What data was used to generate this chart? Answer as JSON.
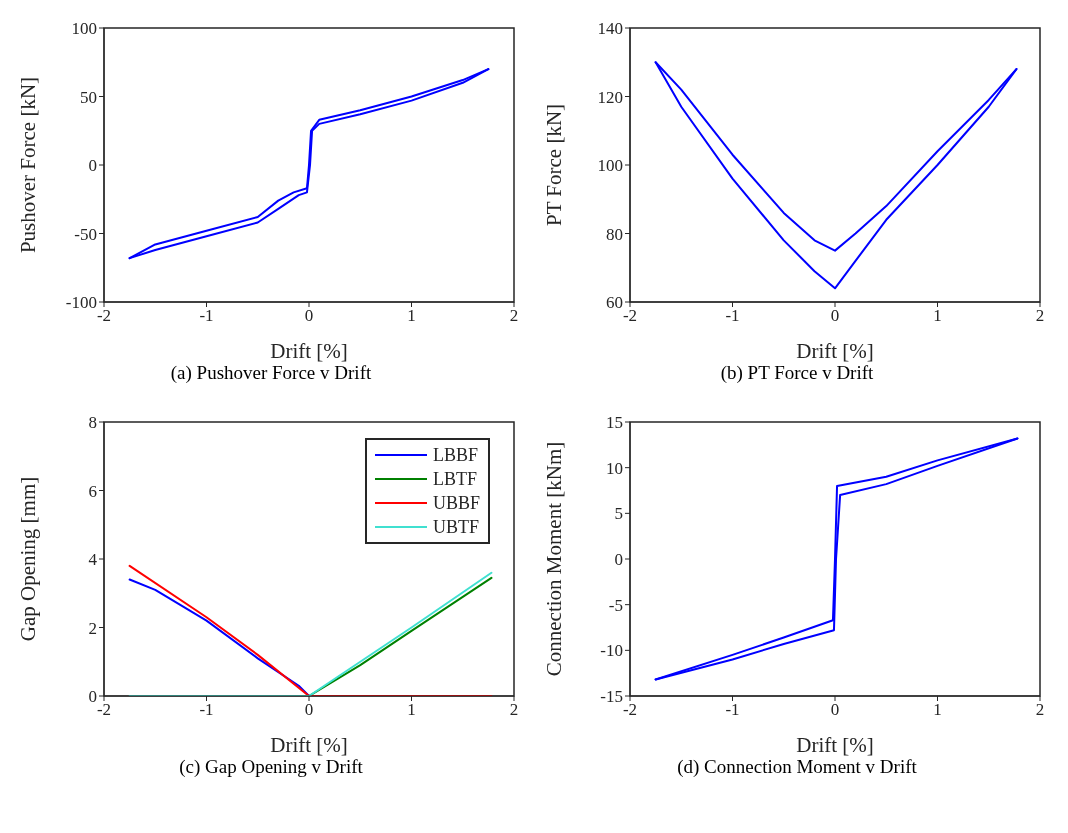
{
  "chart_data": [
    {
      "type": "line",
      "title": "(a) Pushover Force v Drift",
      "xlabel": "Drift [%]",
      "ylabel": "Pushover Force [kN]",
      "xlim": [
        -2,
        2
      ],
      "xticks": [
        -2,
        -1,
        0,
        1,
        2
      ],
      "ylim": [
        -100,
        100
      ],
      "yticks": [
        -100,
        -50,
        0,
        50,
        100
      ],
      "grid": false,
      "legend": false,
      "marker": "none",
      "line_style": "solid",
      "series": [
        {
          "color": "#0000ff",
          "x": [
            -1.75,
            -1.5,
            -1,
            -0.5,
            -0.3,
            -0.15,
            -0.02,
            0,
            0.02,
            0.1,
            0.5,
            1,
            1.5,
            1.75
          ],
          "values": [
            -68,
            -58,
            -48,
            -38,
            -26,
            -20,
            -17,
            0,
            25,
            33,
            40,
            50,
            62,
            70
          ]
        },
        {
          "color": "#0000ff",
          "x": [
            -1.75,
            -1.5,
            -1,
            -0.5,
            -0.3,
            -0.1,
            -0.02,
            0.01,
            0.03,
            0.1,
            0.5,
            1,
            1.5,
            1.75
          ],
          "values": [
            -68,
            -62,
            -52,
            -42,
            -32,
            -22,
            -20,
            0,
            25,
            30,
            37,
            47,
            60,
            70
          ]
        }
      ]
    },
    {
      "type": "line",
      "title": "(b) PT Force v Drift",
      "xlabel": "Drift [%]",
      "ylabel": "PT Force [kN]",
      "xlim": [
        -2,
        2
      ],
      "xticks": [
        -2,
        -1,
        0,
        1,
        2
      ],
      "ylim": [
        60,
        140
      ],
      "yticks": [
        60,
        80,
        100,
        120,
        140
      ],
      "grid": false,
      "legend": false,
      "marker": "none",
      "line_style": "solid",
      "series": [
        {
          "color": "#0000ff",
          "x": [
            -1.75,
            -1.5,
            -1,
            -0.5,
            -0.2,
            0,
            0.2,
            0.5,
            1,
            1.5,
            1.77
          ],
          "values": [
            130,
            122,
            103,
            86,
            78,
            75,
            80,
            88,
            104,
            119,
            128
          ]
        },
        {
          "color": "#0000ff",
          "x": [
            -1.75,
            -1.5,
            -1,
            -0.5,
            -0.2,
            0,
            0.2,
            0.5,
            1,
            1.5,
            1.77
          ],
          "values": [
            130,
            117,
            96,
            78,
            69,
            64,
            72,
            84,
            100,
            117,
            128
          ]
        }
      ]
    },
    {
      "type": "line",
      "title": "(c) Gap Opening v Drift",
      "xlabel": "Drift [%]",
      "ylabel": "Gap Opening [mm]",
      "xlim": [
        -2,
        2
      ],
      "xticks": [
        -2,
        -1,
        0,
        1,
        2
      ],
      "ylim": [
        0,
        8
      ],
      "yticks": [
        0,
        2,
        4,
        6,
        8
      ],
      "grid": false,
      "legend": "top right",
      "marker": "none",
      "line_style": "solid",
      "series": [
        {
          "name": "LBBF",
          "color": "#0000ff",
          "x": [
            -1.75,
            -1.5,
            -1,
            -0.5,
            -0.1,
            0
          ],
          "values": [
            3.4,
            3.1,
            2.2,
            1.1,
            0.3,
            0
          ]
        },
        {
          "name": "LBTF",
          "color": "#008000",
          "x": [
            0,
            0.5,
            1,
            1.78
          ],
          "values": [
            0,
            0.9,
            1.9,
            3.45
          ]
        },
        {
          "name": "UBBF",
          "color": "#ff0000",
          "x": [
            -1.75,
            -1,
            -0.5,
            0,
            1.78
          ],
          "values": [
            3.8,
            2.3,
            1.2,
            0,
            0
          ]
        },
        {
          "name": "UBTF",
          "color": "#40e0d0",
          "x": [
            -1.75,
            0,
            0.5,
            1,
            1.78
          ],
          "values": [
            0,
            0,
            1,
            2,
            3.6
          ]
        }
      ]
    },
    {
      "type": "line",
      "title": "(d) Connection Moment v Drift",
      "xlabel": "Drift [%]",
      "ylabel": "Connection Moment [kNm]",
      "xlim": [
        -2,
        2
      ],
      "xticks": [
        -2,
        -1,
        0,
        1,
        2
      ],
      "ylim": [
        -15,
        15
      ],
      "yticks": [
        -15,
        -10,
        -5,
        0,
        5,
        10,
        15
      ],
      "grid": false,
      "legend": false,
      "marker": "none",
      "line_style": "solid",
      "series": [
        {
          "color": "#0000ff",
          "x": [
            -1.75,
            -1,
            -0.5,
            -0.02,
            0,
            0.02,
            0.5,
            1,
            1.78
          ],
          "values": [
            -13.2,
            -10.5,
            -8.6,
            -6.7,
            0,
            8,
            9,
            10.8,
            13.2
          ]
        },
        {
          "color": "#0000ff",
          "x": [
            -1.75,
            -1,
            -0.5,
            -0.01,
            0.01,
            0.05,
            0.5,
            1,
            1.78
          ],
          "values": [
            -13.2,
            -11,
            -9.3,
            -7.8,
            0,
            7,
            8.2,
            10.2,
            13.2
          ]
        }
      ]
    }
  ]
}
